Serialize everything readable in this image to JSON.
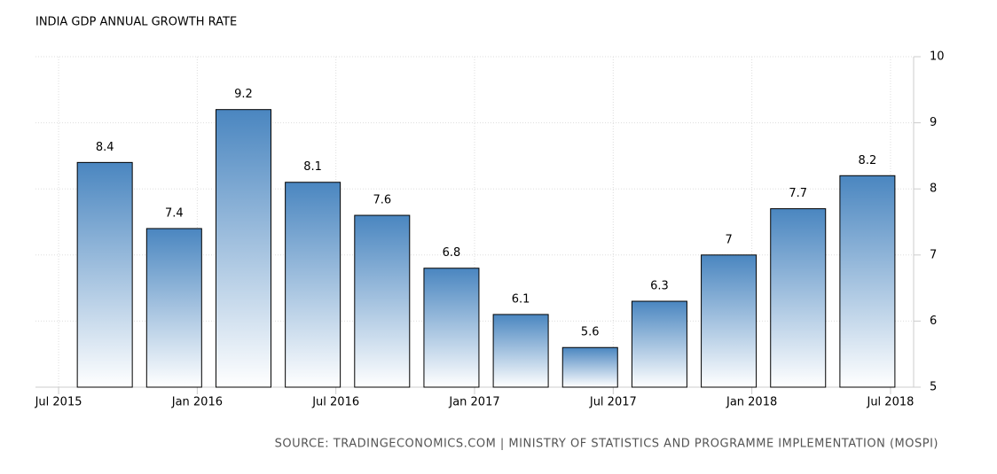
{
  "chart_data": {
    "type": "bar",
    "title": "INDIA GDP ANNUAL GROWTH RATE",
    "source": "SOURCE: TRADINGECONOMICS.COM | MINISTRY OF STATISTICS AND PROGRAMME IMPLEMENTATION (MOSPI)",
    "x": [
      "2015-09",
      "2015-12",
      "2016-03",
      "2016-06",
      "2016-09",
      "2016-12",
      "2017-03",
      "2017-06",
      "2017-09",
      "2017-12",
      "2018-03",
      "2018-06"
    ],
    "values": [
      8.4,
      7.4,
      9.2,
      8.1,
      7.6,
      6.8,
      6.1,
      5.6,
      6.3,
      7,
      7.7,
      8.2
    ],
    "color": "#4a86c0",
    "xlim": [
      "2015-06",
      "2018-08"
    ],
    "xticks": [
      {
        "value": "2015-07",
        "label": "Jul 2015"
      },
      {
        "value": "2016-01",
        "label": "Jan 2016"
      },
      {
        "value": "2016-07",
        "label": "Jul 2016"
      },
      {
        "value": "2017-01",
        "label": "Jan 2017"
      },
      {
        "value": "2017-07",
        "label": "Jul 2017"
      },
      {
        "value": "2018-01",
        "label": "Jan 2018"
      },
      {
        "value": "2018-07",
        "label": "Jul 2018"
      }
    ],
    "ylim": [
      5,
      10
    ],
    "yticks": [
      5,
      6,
      7,
      8,
      9,
      10
    ],
    "grid": true,
    "y_axis_side": "right"
  }
}
